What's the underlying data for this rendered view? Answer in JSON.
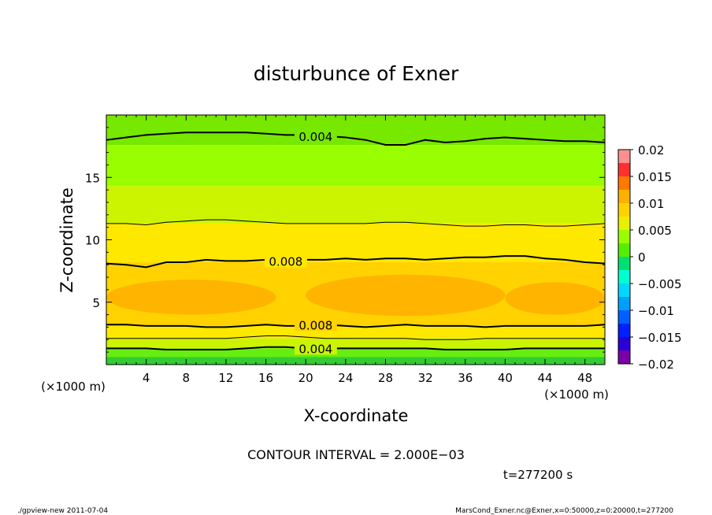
{
  "chart_data": {
    "type": "heatmap",
    "title": "disturbunce of Exner",
    "xlabel": "X-coordinate",
    "ylabel": "Z-coordinate",
    "x_unit": "(×1000 m)",
    "y_unit": "(×1000 m)",
    "xlim": [
      0,
      50
    ],
    "ylim": [
      0,
      20
    ],
    "x_ticks": [
      4,
      8,
      12,
      16,
      20,
      24,
      28,
      32,
      36,
      40,
      44,
      48
    ],
    "y_ticks": [
      5,
      10,
      15
    ],
    "levels": [
      -0.02,
      -0.0175,
      -0.015,
      -0.0125,
      -0.01,
      -0.0075,
      -0.005,
      -0.0025,
      0,
      0.0025,
      0.005,
      0.0075,
      0.01,
      0.0125,
      0.015,
      0.0175,
      0.02
    ],
    "level_colors": [
      "#7a00a8",
      "#2a00d8",
      "#0020ff",
      "#0060ff",
      "#00a0ff",
      "#00d8ff",
      "#00ffd0",
      "#00e070",
      "#55ee00",
      "#99ff00",
      "#e8f000",
      "#ffd200",
      "#ffb000",
      "#ff7800",
      "#ff3030",
      "#ff9090"
    ],
    "colorbar_ticks": [
      {
        "value": 0.02,
        "label": "0.02"
      },
      {
        "value": 0.015,
        "label": "0.015"
      },
      {
        "value": 0.01,
        "label": "0.01"
      },
      {
        "value": 0.005,
        "label": "0.005"
      },
      {
        "value": 0,
        "label": "0"
      },
      {
        "value": -0.005,
        "label": "−0.005"
      },
      {
        "value": -0.01,
        "label": "−0.01"
      },
      {
        "value": -0.015,
        "label": "−0.015"
      },
      {
        "value": -0.02,
        "label": "−0.02"
      }
    ],
    "contour_interval_text": "CONTOUR INTERVAL = 2.000E−03",
    "contours": [
      {
        "value": 0.004,
        "label": "0.004",
        "z": [
          18.0,
          18.2,
          18.4,
          18.5,
          18.6,
          18.6,
          18.6,
          18.6,
          18.5,
          18.4,
          18.4,
          18.3,
          18.2,
          18.0,
          17.6,
          17.6,
          18.0,
          17.8,
          17.9,
          18.1,
          18.2,
          18.1,
          18.0,
          17.9,
          17.9,
          17.8
        ],
        "label_x": 21
      },
      {
        "value": 0.006,
        "label": "",
        "z": [
          11.3,
          11.3,
          11.2,
          11.4,
          11.5,
          11.6,
          11.6,
          11.5,
          11.4,
          11.3,
          11.3,
          11.3,
          11.3,
          11.3,
          11.4,
          11.4,
          11.3,
          11.2,
          11.1,
          11.1,
          11.2,
          11.2,
          11.1,
          11.1,
          11.2,
          11.3
        ],
        "label_x": -1
      },
      {
        "value": 0.008,
        "label": "0.008",
        "z": [
          8.1,
          8.0,
          7.8,
          8.2,
          8.2,
          8.4,
          8.3,
          8.3,
          8.4,
          8.3,
          8.4,
          8.4,
          8.5,
          8.4,
          8.5,
          8.5,
          8.4,
          8.5,
          8.6,
          8.6,
          8.7,
          8.7,
          8.5,
          8.4,
          8.2,
          8.1
        ],
        "label_x": 18
      },
      {
        "value": 0.008,
        "label": "0.008",
        "z": [
          3.2,
          3.2,
          3.1,
          3.1,
          3.1,
          3.0,
          3.0,
          3.1,
          3.2,
          3.1,
          3.1,
          3.2,
          3.1,
          3.0,
          3.1,
          3.2,
          3.1,
          3.1,
          3.1,
          3.0,
          3.1,
          3.1,
          3.1,
          3.1,
          3.1,
          3.2
        ],
        "label_x": 21
      },
      {
        "value": 0.006,
        "label": "",
        "z": [
          2.1,
          2.1,
          2.1,
          2.1,
          2.1,
          2.1,
          2.1,
          2.2,
          2.3,
          2.3,
          2.2,
          2.1,
          2.1,
          2.1,
          2.1,
          2.1,
          2.0,
          2.0,
          2.0,
          2.1,
          2.1,
          2.1,
          2.1,
          2.1,
          2.1,
          2.1
        ],
        "label_x": -1
      },
      {
        "value": 0.004,
        "label": "0.004",
        "z": [
          1.3,
          1.3,
          1.3,
          1.2,
          1.2,
          1.2,
          1.2,
          1.3,
          1.4,
          1.4,
          1.3,
          1.3,
          1.3,
          1.3,
          1.3,
          1.3,
          1.3,
          1.2,
          1.2,
          1.2,
          1.2,
          1.3,
          1.3,
          1.3,
          1.3,
          1.3
        ],
        "label_x": 21
      }
    ],
    "orange_cells": [
      {
        "x0": 0,
        "x1": 17,
        "z0": 4.0,
        "z1": 6.8
      },
      {
        "x0": 20,
        "x1": 40,
        "z0": 3.9,
        "z1": 7.2
      },
      {
        "x0": 40,
        "x1": 50,
        "z0": 4.0,
        "z1": 6.6
      }
    ]
  },
  "annotations": {
    "time": "t=277200 s",
    "footer_left": "./gpview-new  2011-07-04",
    "footer_right": "MarsCond_Exner.nc@Exner,x=0:50000,z=0:20000,t=277200"
  },
  "colors": {
    "band_top": "#77e800",
    "band_green_mid": "#99ff00",
    "band_yellow_green": "#ccf400",
    "band_yellow": "#ffe800",
    "band_gold": "#ffd200",
    "band_orange": "#ffb400",
    "band_bottom_lime": "#66ee11",
    "band_bottom_green": "#33cc33"
  }
}
